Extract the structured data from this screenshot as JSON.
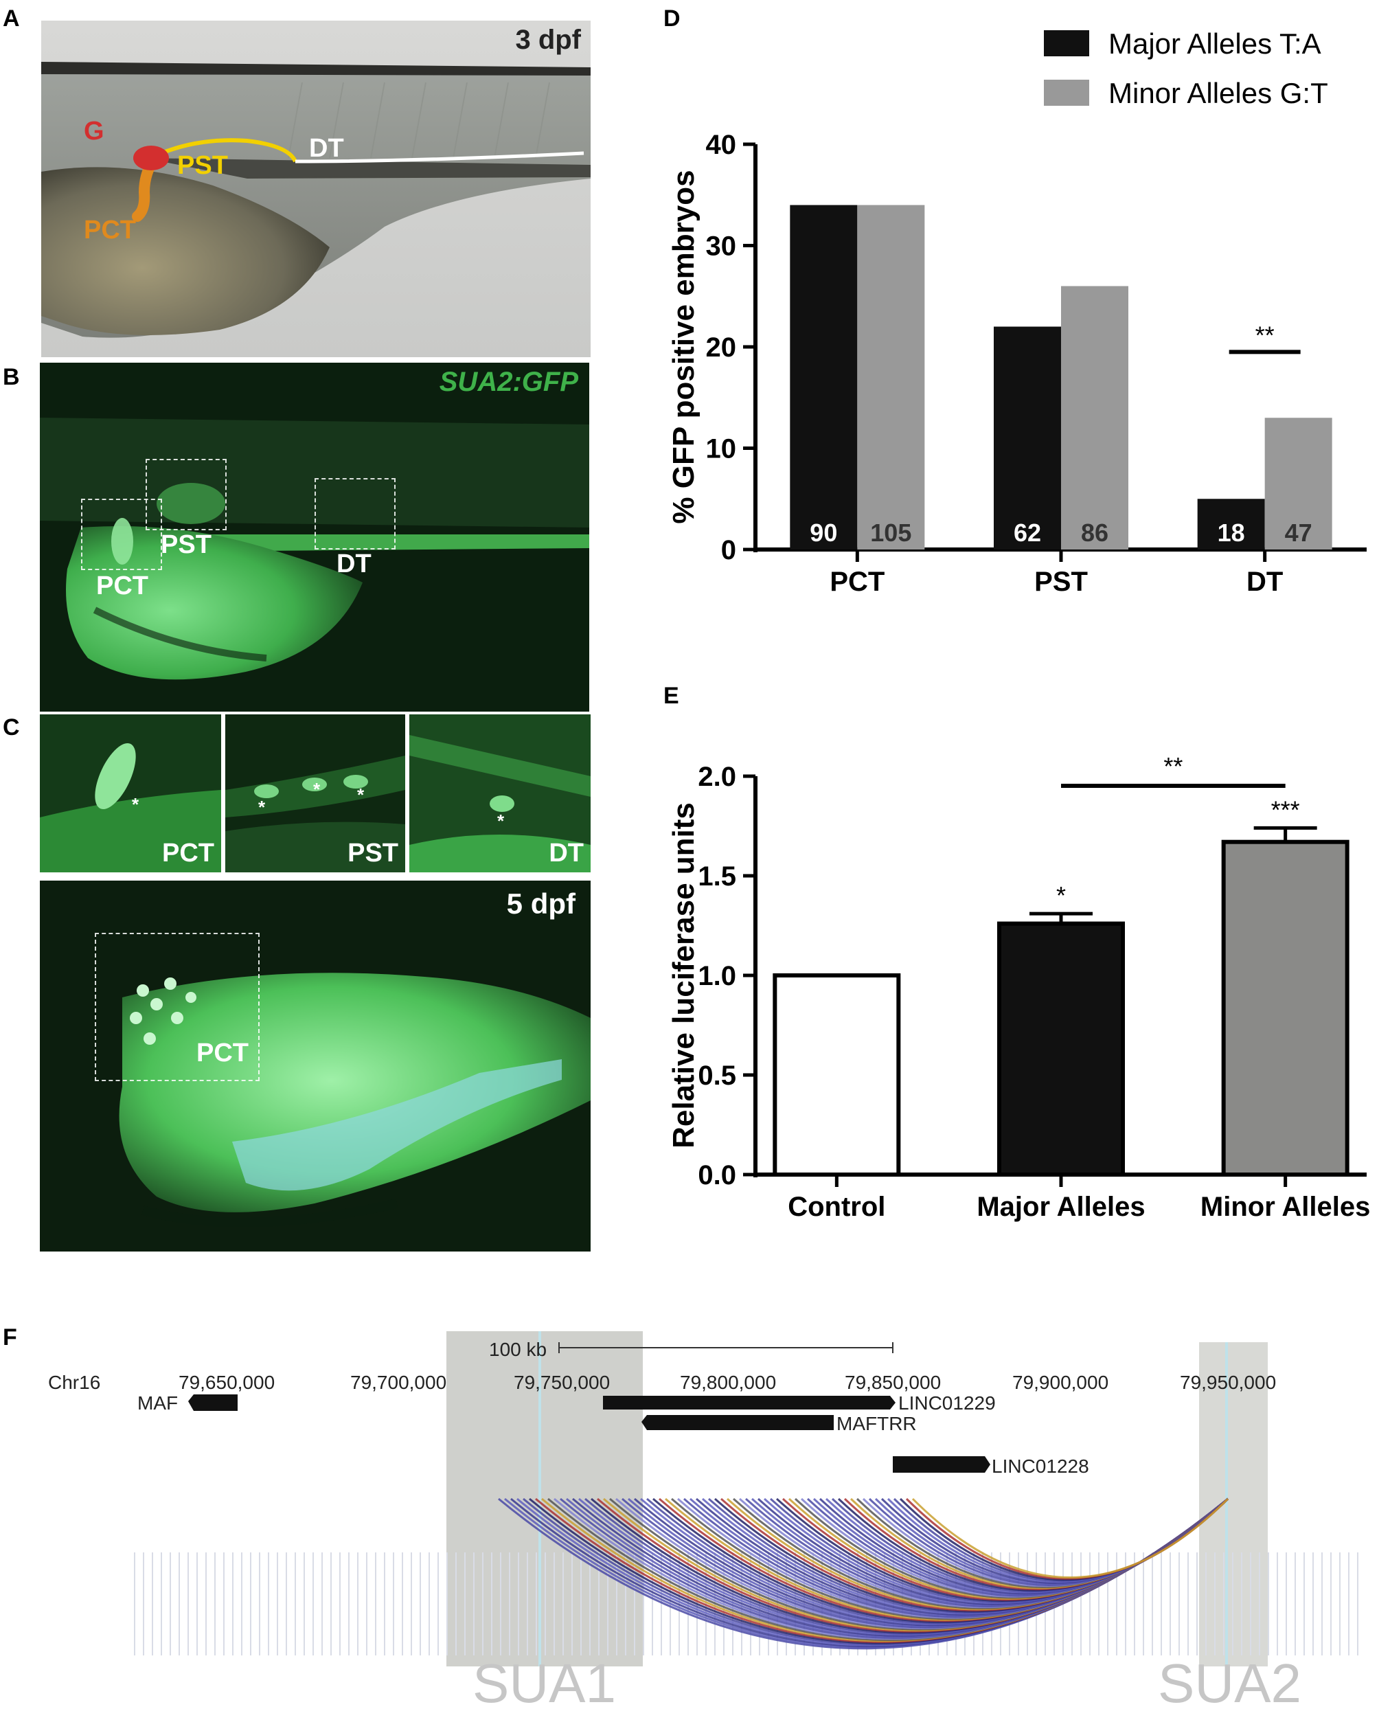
{
  "panels": {
    "A": {
      "letter": "A",
      "time_label": "3 dpf",
      "labels": {
        "g": "G",
        "pst": "PST",
        "dt": "DT",
        "pct": "PCT"
      },
      "colors": {
        "g": "#d32f2f",
        "pst": "#f2d000",
        "dt": "#ffffff",
        "pct": "#e08a1e"
      }
    },
    "B": {
      "letter": "B",
      "title": "SUA2:GFP",
      "labels": {
        "pst": "PST",
        "pct": "PCT",
        "dt": "DT"
      }
    },
    "C": {
      "letter": "C",
      "insets": [
        {
          "label": "PCT",
          "asterisks": [
            "*"
          ]
        },
        {
          "label": "PST",
          "asterisks": [
            "*",
            "*",
            "*"
          ]
        },
        {
          "label": "DT",
          "asterisks": [
            "*"
          ]
        }
      ],
      "time_label": "5 dpf",
      "main_label": "PCT"
    },
    "D": {
      "letter": "D"
    },
    "E": {
      "letter": "E"
    },
    "F": {
      "letter": "F",
      "chrom": "Chr16",
      "scale_label": "100 kb",
      "coords": [
        "79,650,000",
        "79,700,000",
        "79,750,000",
        "79,800,000",
        "79,850,000",
        "79,900,000",
        "79,950,000"
      ],
      "genes": [
        "MAF",
        "LINC01229",
        "MAFTRR",
        "LINC01228"
      ],
      "regions": [
        "SUA1",
        "SUA2"
      ]
    }
  },
  "chart_data": [
    {
      "type": "bar",
      "panel": "D",
      "categories": [
        "PCT",
        "PST",
        "DT"
      ],
      "series": [
        {
          "name": "Major Alleles T:A",
          "values": [
            34,
            22,
            5
          ],
          "n": [
            "90",
            "62",
            "18"
          ],
          "color": "#111111"
        },
        {
          "name": "Minor Alleles G:T",
          "values": [
            34,
            26,
            13
          ],
          "n": [
            "105",
            "86",
            "47"
          ],
          "color": "#999999"
        }
      ],
      "ylabel": "% GFP positive embryos",
      "ylim": [
        0,
        40
      ],
      "yticks": [
        "0",
        "10",
        "20",
        "30",
        "40"
      ],
      "legend": "top-right",
      "significance": [
        {
          "category": "DT",
          "label": "**"
        }
      ]
    },
    {
      "type": "bar",
      "panel": "E",
      "categories": [
        "Control",
        "Major Alleles",
        "Minor Alleles"
      ],
      "values": [
        1.0,
        1.26,
        1.67
      ],
      "errors": [
        0,
        0.05,
        0.07
      ],
      "colors": [
        "#ffffff",
        "#111111",
        "#8a8a88"
      ],
      "bar_labels": [
        "",
        "*",
        "***"
      ],
      "ylabel": "Relative luciferase units",
      "ylim": [
        0,
        2.0
      ],
      "yticks": [
        "0.0",
        "0.5",
        "1.0",
        "1.5",
        "2.0"
      ],
      "significance": [
        {
          "from": "Major Alleles",
          "to": "Minor Alleles",
          "label": "**"
        }
      ]
    }
  ]
}
